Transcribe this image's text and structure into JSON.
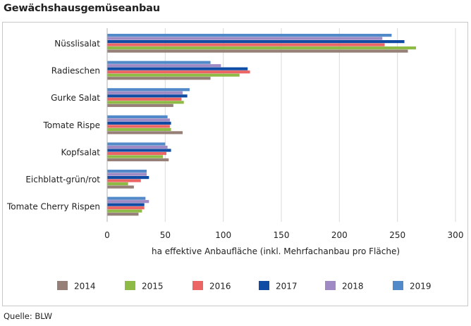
{
  "title": "Gewächshausgemüseanbau",
  "source": "Quelle: BLW",
  "chart_data": {
    "type": "bar",
    "orientation": "horizontal",
    "title": "Gewächshausgemüseanbau",
    "xlabel": "ha effektive Anbaufläche (inkl. Mehrfachanbau pro Fläche)",
    "ylabel": "",
    "xlim": [
      0,
      300
    ],
    "xticks": [
      0,
      50,
      100,
      150,
      200,
      250,
      300
    ],
    "grid": true,
    "legend_position": "bottom",
    "categories": [
      "Nüsslisalat",
      "Radieschen",
      "Gurke Salat",
      "Tomate Rispe",
      "Kopfsalat",
      "Eichblatt-grün/rot",
      "Tomate Cherry Rispen"
    ],
    "series": [
      {
        "name": "2014",
        "color": "#967f77",
        "values": [
          259,
          89,
          57,
          65,
          53,
          23,
          27
        ]
      },
      {
        "name": "2015",
        "color": "#8dbb45",
        "values": [
          266,
          114,
          66,
          55,
          48,
          18,
          30
        ]
      },
      {
        "name": "2016",
        "color": "#eb6565",
        "values": [
          239,
          123,
          64,
          54,
          51,
          29,
          32
        ]
      },
      {
        "name": "2017",
        "color": "#104ca3",
        "values": [
          256,
          121,
          69,
          55,
          55,
          36,
          32
        ]
      },
      {
        "name": "2018",
        "color": "#a08ac4",
        "values": [
          237,
          98,
          65,
          54,
          52,
          34,
          36
        ]
      },
      {
        "name": "2019",
        "color": "#5189c9",
        "values": [
          245,
          89,
          71,
          52,
          50,
          34,
          33
        ]
      }
    ]
  }
}
